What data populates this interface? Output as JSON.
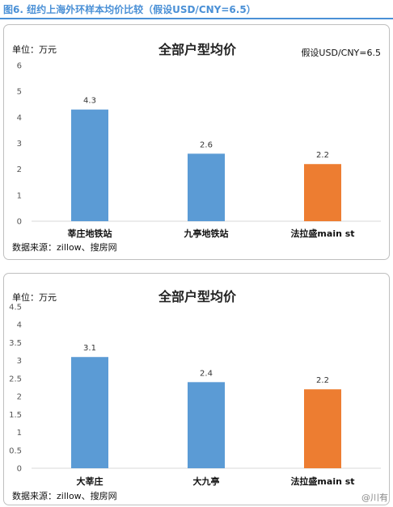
{
  "figure_title": "图6. 纽约上海外环样本均价比较（假设USD/CNY=6.5）",
  "watermark": "@川有",
  "chart_data": [
    {
      "type": "bar",
      "title": "全部户型均价",
      "unit_label": "单位：万元",
      "note": "假设USD/CNY=6.5",
      "source": "数据来源：zillow、搜房网",
      "ylim": [
        0,
        6
      ],
      "yticks": [
        "0",
        "1",
        "2",
        "3",
        "4",
        "5",
        "6"
      ],
      "categories": [
        "莘庄地铁站",
        "九亭地铁站",
        "法拉盛main st"
      ],
      "values": [
        4.3,
        2.6,
        2.2
      ],
      "data_labels": [
        "4.3",
        "2.6",
        "2.2"
      ],
      "colors": [
        "#5b9bd5",
        "#5b9bd5",
        "#ed7d31"
      ],
      "grid": false
    },
    {
      "type": "bar",
      "title": "全部户型均价",
      "unit_label": "单位：万元",
      "note": "",
      "source": "数据来源：zillow、搜房网",
      "ylim": [
        0,
        4.5
      ],
      "yticks": [
        "0",
        "0.5",
        "1",
        "1.5",
        "2",
        "2.5",
        "3",
        "3.5",
        "4",
        "4.5"
      ],
      "categories": [
        "大莘庄",
        "大九亭",
        "法拉盛main st"
      ],
      "values": [
        3.1,
        2.4,
        2.2
      ],
      "data_labels": [
        "3.1",
        "2.4",
        "2.2"
      ],
      "colors": [
        "#5b9bd5",
        "#5b9bd5",
        "#ed7d31"
      ],
      "grid": false
    }
  ]
}
